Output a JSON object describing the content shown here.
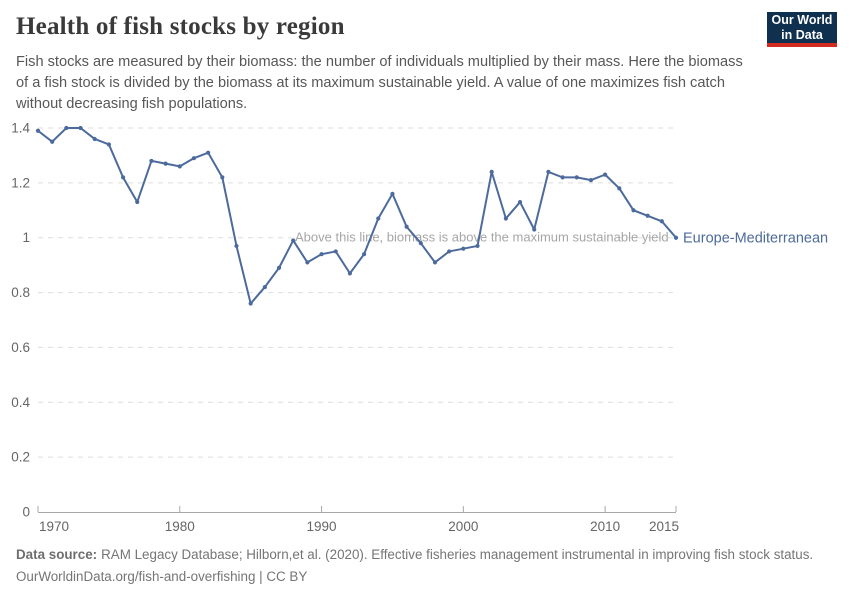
{
  "header": {
    "title": "Health of fish stocks by region",
    "subtitle": "Fish stocks are measured by their biomass: the number of individuals multiplied by their mass. Here the biomass of a fish stock is divided by the biomass at its maximum sustainable yield. A value of one maximizes fish catch without decreasing fish populations.",
    "logo": {
      "line1": "Our World",
      "line2": "in Data"
    }
  },
  "chart_data": {
    "type": "line",
    "title": "Health of fish stocks by region",
    "xlabel": "",
    "ylabel": "",
    "xlim": [
      1970,
      2015
    ],
    "ylim": [
      0,
      1.4
    ],
    "grid": "horizontal dashed",
    "legend_position": "end-of-line label",
    "x_ticks": [
      1970,
      1980,
      1990,
      2000,
      2010,
      2015
    ],
    "y_tick_labels": [
      "0",
      "0.2",
      "0.4",
      "0.6",
      "0.8",
      "1",
      "1.2",
      "1.4"
    ],
    "annotation": "Above this line, biomass is above the maximum sustainable yield",
    "annotation_at_y": 1,
    "series": [
      {
        "name": "Europe-Mediterranean",
        "color": "#4c6a9c",
        "x": [
          1970,
          1971,
          1972,
          1973,
          1974,
          1975,
          1976,
          1977,
          1978,
          1979,
          1980,
          1981,
          1982,
          1983,
          1984,
          1985,
          1986,
          1987,
          1988,
          1989,
          1990,
          1991,
          1992,
          1993,
          1994,
          1995,
          1996,
          1997,
          1998,
          1999,
          2000,
          2001,
          2002,
          2003,
          2004,
          2005,
          2006,
          2007,
          2008,
          2009,
          2010,
          2011,
          2012,
          2013,
          2014,
          2015
        ],
        "values": [
          1.39,
          1.35,
          1.4,
          1.4,
          1.36,
          1.34,
          1.22,
          1.13,
          1.28,
          1.27,
          1.26,
          1.29,
          1.31,
          1.22,
          0.97,
          0.76,
          0.82,
          0.89,
          0.99,
          0.91,
          0.94,
          0.95,
          0.87,
          0.94,
          1.07,
          1.16,
          1.04,
          0.98,
          0.91,
          0.95,
          0.96,
          0.97,
          1.24,
          1.07,
          1.13,
          1.03,
          1.24,
          1.22,
          1.22,
          1.21,
          1.23,
          1.18,
          1.1,
          1.08,
          1.06,
          1.0
        ]
      }
    ]
  },
  "footer": {
    "source_label": "Data source:",
    "source_text": "RAM Legacy Database; Hilborn,et al. (2020). Effective fisheries management instrumental in improving fish stock status.",
    "link_line": "OurWorldinData.org/fish-and-overfishing | CC BY"
  },
  "colors": {
    "series_line": "#4c6a9c",
    "gridline": "#dddddd",
    "axis": "#a8a8a8",
    "tick_label": "#666666",
    "annotation_text": "#a6a6a6",
    "logo_bg": "#10304f",
    "logo_stripe": "#d42b21"
  }
}
